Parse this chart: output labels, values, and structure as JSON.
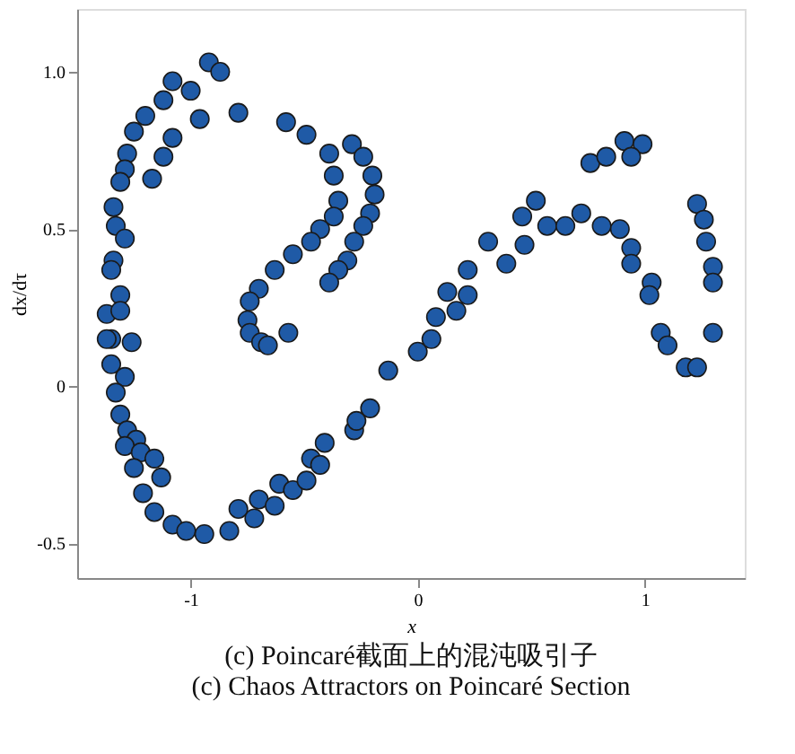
{
  "chart_data": {
    "type": "scatter",
    "xlabel": "x",
    "ylabel": "dx/dτ",
    "annotations": [
      "(c) Poincaré截面上的混沌吸引子",
      "(c) Chaos Attractors on Poincaré Section"
    ],
    "xlim": [
      -1.5,
      1.44
    ],
    "ylim": [
      -0.61,
      1.2
    ],
    "xticks": [
      -1,
      0,
      1
    ],
    "yticks": [
      -0.5,
      0,
      0.5,
      {
        "value": 1,
        "label": "1.0"
      }
    ],
    "grid": false,
    "marker": "circle",
    "series": [
      {
        "color": "#1f5aa6",
        "x": [
          -0.92,
          -0.87,
          -1.0,
          -1.08,
          -1.12,
          -1.2,
          -1.25,
          -1.28,
          -1.29,
          -1.31,
          -1.34,
          -1.33,
          -1.29,
          -1.34,
          -1.35,
          -1.31,
          -1.37,
          -1.31,
          -1.35,
          -1.26,
          -1.37,
          -1.35,
          -1.29,
          -1.33,
          -1.31,
          -1.28,
          -1.24,
          -1.29,
          -1.22,
          -1.16,
          -1.25,
          -1.13,
          -1.21,
          -1.16,
          -1.08,
          -1.02,
          -0.94,
          -0.83,
          -0.79,
          -0.72,
          -0.7,
          -0.63,
          -0.61,
          -0.55,
          -0.49,
          -0.47,
          -0.43,
          -0.41,
          -0.28,
          -0.21,
          -0.27,
          -0.13,
          0.0,
          0.06,
          0.08,
          0.13,
          0.17,
          0.22,
          0.22,
          0.31,
          0.39,
          0.47,
          0.46,
          0.52,
          0.57,
          0.65,
          0.72,
          0.81,
          0.89,
          0.94,
          0.94,
          1.03,
          1.02,
          1.07,
          1.1,
          1.18,
          1.23,
          0.76,
          0.83,
          0.91,
          0.99,
          0.94,
          1.23,
          1.26,
          1.27,
          1.3,
          1.3,
          1.3,
          -1.08,
          -0.96,
          -0.79,
          -1.12,
          -1.17,
          -0.58,
          -0.49,
          -0.39,
          -0.37,
          -0.35,
          -0.37,
          -0.43,
          -0.47,
          -0.55,
          -0.63,
          -0.7,
          -0.74,
          -0.75,
          -0.74,
          -0.69,
          -0.66,
          -0.57,
          -0.29,
          -0.24,
          -0.2,
          -0.19,
          -0.21,
          -0.24,
          -0.28,
          -0.31,
          -0.35,
          -0.39
        ],
        "values": [
          1.03,
          1.0,
          0.94,
          0.97,
          0.91,
          0.86,
          0.81,
          0.74,
          0.69,
          0.65,
          0.57,
          0.51,
          0.47,
          0.4,
          0.37,
          0.29,
          0.23,
          0.24,
          0.15,
          0.14,
          0.15,
          0.07,
          0.03,
          -0.02,
          -0.09,
          -0.14,
          -0.17,
          -0.19,
          -0.21,
          -0.23,
          -0.26,
          -0.29,
          -0.34,
          -0.4,
          -0.44,
          -0.46,
          -0.47,
          -0.46,
          -0.39,
          -0.42,
          -0.36,
          -0.38,
          -0.31,
          -0.33,
          -0.3,
          -0.23,
          -0.25,
          -0.18,
          -0.14,
          -0.07,
          -0.11,
          0.05,
          0.11,
          0.15,
          0.22,
          0.3,
          0.24,
          0.29,
          0.37,
          0.46,
          0.39,
          0.45,
          0.54,
          0.59,
          0.51,
          0.51,
          0.55,
          0.51,
          0.5,
          0.44,
          0.39,
          0.33,
          0.29,
          0.17,
          0.13,
          0.06,
          0.06,
          0.71,
          0.73,
          0.78,
          0.77,
          0.73,
          0.58,
          0.53,
          0.46,
          0.38,
          0.33,
          0.17,
          0.79,
          0.85,
          0.87,
          0.73,
          0.66,
          0.84,
          0.8,
          0.74,
          0.67,
          0.59,
          0.54,
          0.5,
          0.46,
          0.42,
          0.37,
          0.31,
          0.27,
          0.21,
          0.17,
          0.14,
          0.13,
          0.17,
          0.77,
          0.73,
          0.67,
          0.61,
          0.55,
          0.51,
          0.46,
          0.4,
          0.37,
          0.33
        ]
      }
    ]
  }
}
